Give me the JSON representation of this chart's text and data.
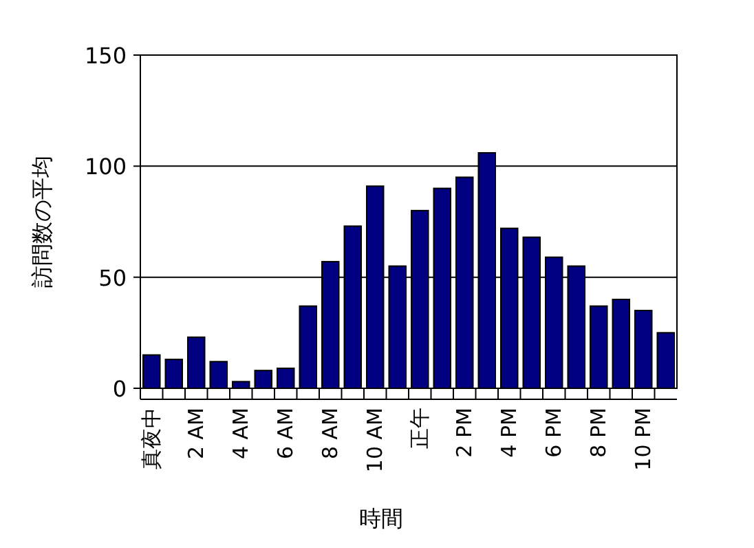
{
  "chart_data": {
    "type": "bar",
    "xlabel": "時間",
    "ylabel": "訪問数の平均",
    "categories": [
      "真夜中",
      null,
      "2 AM",
      null,
      "4 AM",
      null,
      "6 AM",
      null,
      "8 AM",
      null,
      "10 AM",
      null,
      "正午",
      null,
      "2 PM",
      null,
      "4 PM",
      null,
      "6 PM",
      null,
      "8 PM",
      null,
      "10 PM",
      null
    ],
    "series": [
      {
        "color": "#000080",
        "values": [
          15,
          13,
          23,
          12,
          3,
          8,
          9,
          37,
          57,
          73,
          91,
          55,
          80,
          90,
          95,
          106,
          72,
          68,
          59,
          55,
          37,
          40,
          35,
          25
        ]
      }
    ],
    "ylim": [
      0,
      150
    ],
    "yticks": [
      0,
      50,
      100,
      150
    ],
    "grid": "y"
  }
}
